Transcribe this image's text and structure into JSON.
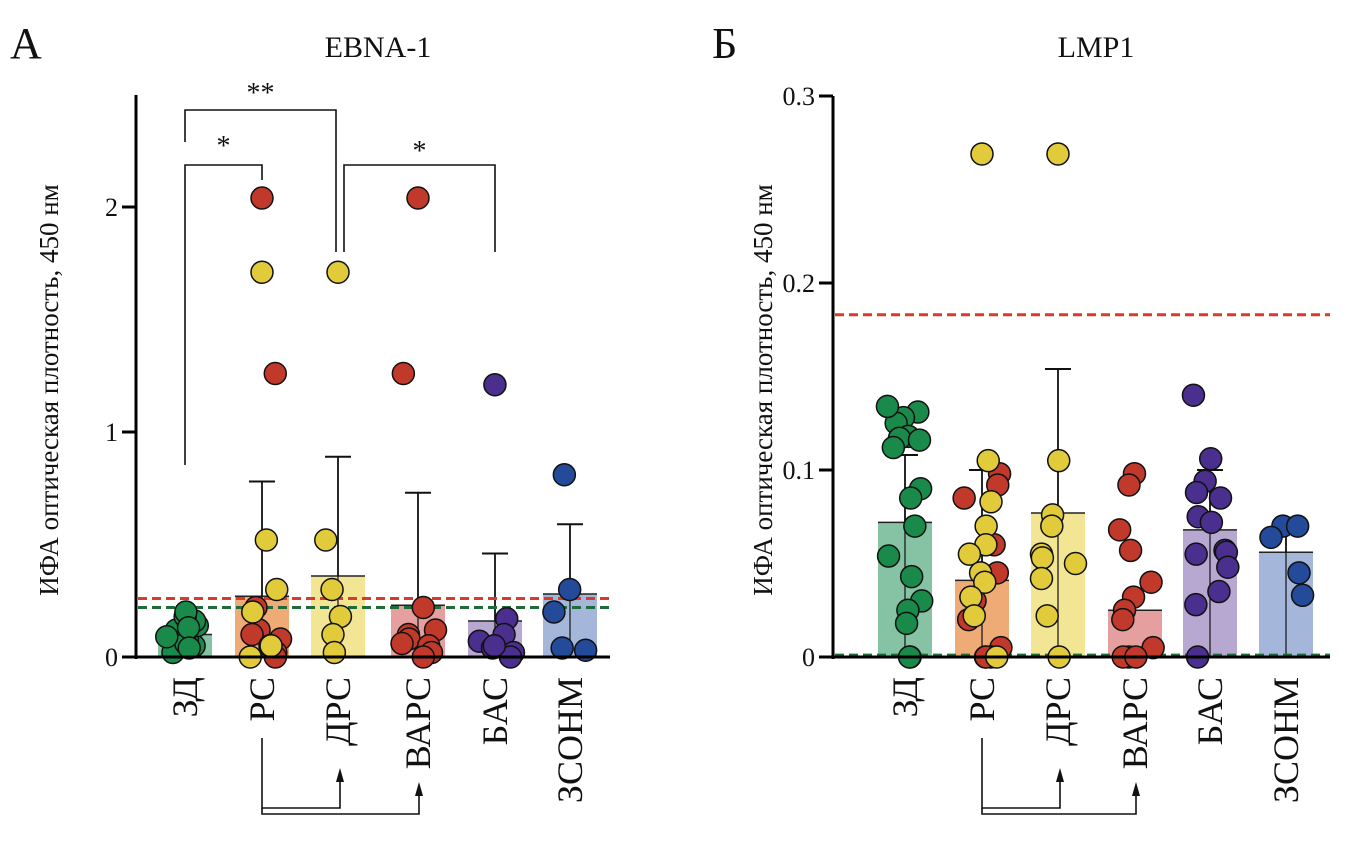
{
  "chart_data": [
    {
      "type": "bar",
      "panel_label": "А",
      "title": "EBNA-1",
      "ylabel": "ИФА оптическая плотность, 450 нм",
      "xlabel": "",
      "ylim": [
        0,
        2.5
      ],
      "yticks": [
        0,
        1,
        2
      ],
      "ytick_labels": [
        "0",
        "1",
        "2"
      ],
      "grid": false,
      "categories": [
        "ЗД",
        "РС",
        "ДРС",
        "ВАРС",
        "БАС",
        "ЗСОНМ"
      ],
      "colors": [
        "#1a8a4a",
        "#c0392b",
        "#e2cb3a",
        "#c0392b",
        "#4b2f8f",
        "#244a9a"
      ],
      "bar_colors": [
        "#7fbf9f",
        "#eea76f",
        "#f1e58e",
        "#e59a9a",
        "#b3a3d0",
        "#9fb3d8"
      ],
      "values": [
        0.1,
        0.27,
        0.36,
        0.23,
        0.16,
        0.28
      ],
      "error_upper": [
        0.12,
        0.78,
        0.89,
        0.73,
        0.46,
        0.59
      ],
      "points": [
        [
          0.02,
          0.05,
          0.08,
          0.1,
          0.12,
          0.14,
          0.16,
          0.18,
          0.2,
          0.06,
          0.09,
          0.13,
          0.04
        ],
        [
          2.04,
          1.26,
          0.22,
          0.12,
          0.1,
          0.08,
          0.05,
          0.02,
          0.0
        ],
        [
          1.71,
          0.52,
          0.3,
          0.18,
          0.1,
          0.02
        ],
        [
          2.04,
          1.26,
          0.22,
          0.12,
          0.1,
          0.08,
          0.05,
          0.02,
          0.0,
          0.06
        ],
        [
          1.21,
          0.17,
          0.1,
          0.07,
          0.04,
          0.02,
          0.0,
          0.05
        ],
        [
          0.81,
          0.3,
          0.2,
          0.03,
          0.04
        ]
      ],
      "mixed_points_rs": [
        1.71,
        0.52,
        0.3,
        0.2,
        0.05,
        0.0
      ],
      "cutoff_lines": [
        {
          "name": "red cutoff",
          "value": 0.26,
          "color": "#d93a2a"
        },
        {
          "name": "green cutoff",
          "value": 0.22,
          "color": "#1f6b3a"
        }
      ],
      "significance": [
        {
          "from": "ЗД",
          "to": "ДРС",
          "label": "**"
        },
        {
          "from": "ЗД",
          "to": "РС",
          "label": "*"
        },
        {
          "from": "ДРС",
          "to": "БАС",
          "label": "*"
        }
      ],
      "annotation_arrows": [
        {
          "from": "РС",
          "to": "ДРС"
        },
        {
          "from": "РС",
          "to": "ВАРС"
        }
      ]
    },
    {
      "type": "bar",
      "panel_label": "Б",
      "title": "LMP1",
      "ylabel": "ИФА оптическая плотность, 450 нм",
      "xlabel": "",
      "ylim": [
        0,
        0.3
      ],
      "yticks": [
        0,
        0.1,
        0.2,
        0.3
      ],
      "ytick_labels": [
        "0",
        "0.1",
        "0.2",
        "0.3"
      ],
      "grid": false,
      "categories": [
        "ЗД",
        "РС",
        "ДРС",
        "ВАРС",
        "БАС",
        "ЗСОНМ"
      ],
      "colors": [
        "#1a8a4a",
        "#c0392b",
        "#e2cb3a",
        "#c0392b",
        "#4b2f8f",
        "#244a9a"
      ],
      "bar_colors": [
        "#7fbf9f",
        "#eea76f",
        "#f1e58e",
        "#e59a9a",
        "#b3a3d0",
        "#9fb3d8"
      ],
      "values": [
        0.072,
        0.041,
        0.077,
        0.025,
        0.068,
        0.056
      ],
      "error_upper": [
        0.108,
        0.1,
        0.154,
        0.0,
        0.1,
        0.07
      ],
      "points": [
        [
          0.131,
          0.128,
          0.125,
          0.118,
          0.134,
          0.117,
          0.116,
          0.112,
          0.09,
          0.085,
          0.07,
          0.054,
          0.043,
          0.03,
          0.025,
          0.018,
          0.0,
          0.0
        ],
        [
          0.098,
          0.092,
          0.085,
          0.06,
          0.045,
          0.03,
          0.02,
          0.005,
          0.0,
          0.0,
          0.0
        ],
        [
          0.269,
          0.105,
          0.076,
          0.07,
          0.055,
          0.053,
          0.05,
          0.042,
          0.022,
          0.0
        ],
        [
          0.098,
          0.092,
          0.068,
          0.057,
          0.04,
          0.032,
          0.025,
          0.02,
          0.005,
          0.0,
          0.0,
          0.0
        ],
        [
          0.14,
          0.106,
          0.094,
          0.088,
          0.085,
          0.075,
          0.072,
          0.057,
          0.056,
          0.055,
          0.048,
          0.035,
          0.028,
          0.0
        ],
        [
          0.07,
          0.07,
          0.064,
          0.045,
          0.033
        ]
      ],
      "mixed_points_rs": [
        0.269,
        0.105,
        0.083,
        0.07,
        0.06,
        0.055,
        0.045,
        0.04,
        0.032,
        0.022,
        0.0
      ],
      "cutoff_lines": [
        {
          "name": "red cutoff",
          "value": 0.183,
          "color": "#d93a2a"
        },
        {
          "name": "green cutoff",
          "value": 0.001,
          "color": "#1f6b3a"
        }
      ],
      "significance": [],
      "annotation_arrows": [
        {
          "from": "РС",
          "to": "ДРС"
        },
        {
          "from": "РС",
          "to": "ВАРС"
        }
      ]
    }
  ]
}
